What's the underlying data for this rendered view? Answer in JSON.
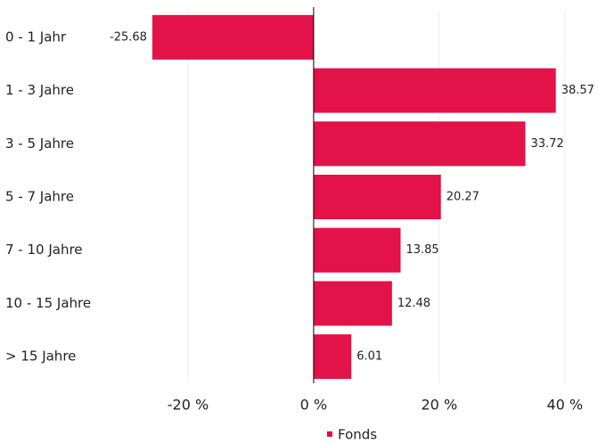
{
  "chart_data": {
    "type": "barh",
    "categories": [
      "0 - 1 Jahr",
      "1 - 3 Jahre",
      "3 - 5 Jahre",
      "5 - 7 Jahre",
      "7 - 10 Jahre",
      "10 - 15 Jahre",
      "> 15 Jahre"
    ],
    "series": [
      {
        "name": "Fonds",
        "color": "#e31248",
        "values": [
          -25.68,
          38.57,
          33.72,
          20.27,
          13.85,
          12.48,
          6.01
        ]
      }
    ],
    "xlim": [
      -30,
      45
    ],
    "xticks": [
      {
        "value": -20,
        "label": "-20 %"
      },
      {
        "value": 0,
        "label": "0 %"
      },
      {
        "value": 20,
        "label": "20 %"
      },
      {
        "value": 40,
        "label": "40 %"
      }
    ],
    "grid": true,
    "legend": "bottom"
  }
}
